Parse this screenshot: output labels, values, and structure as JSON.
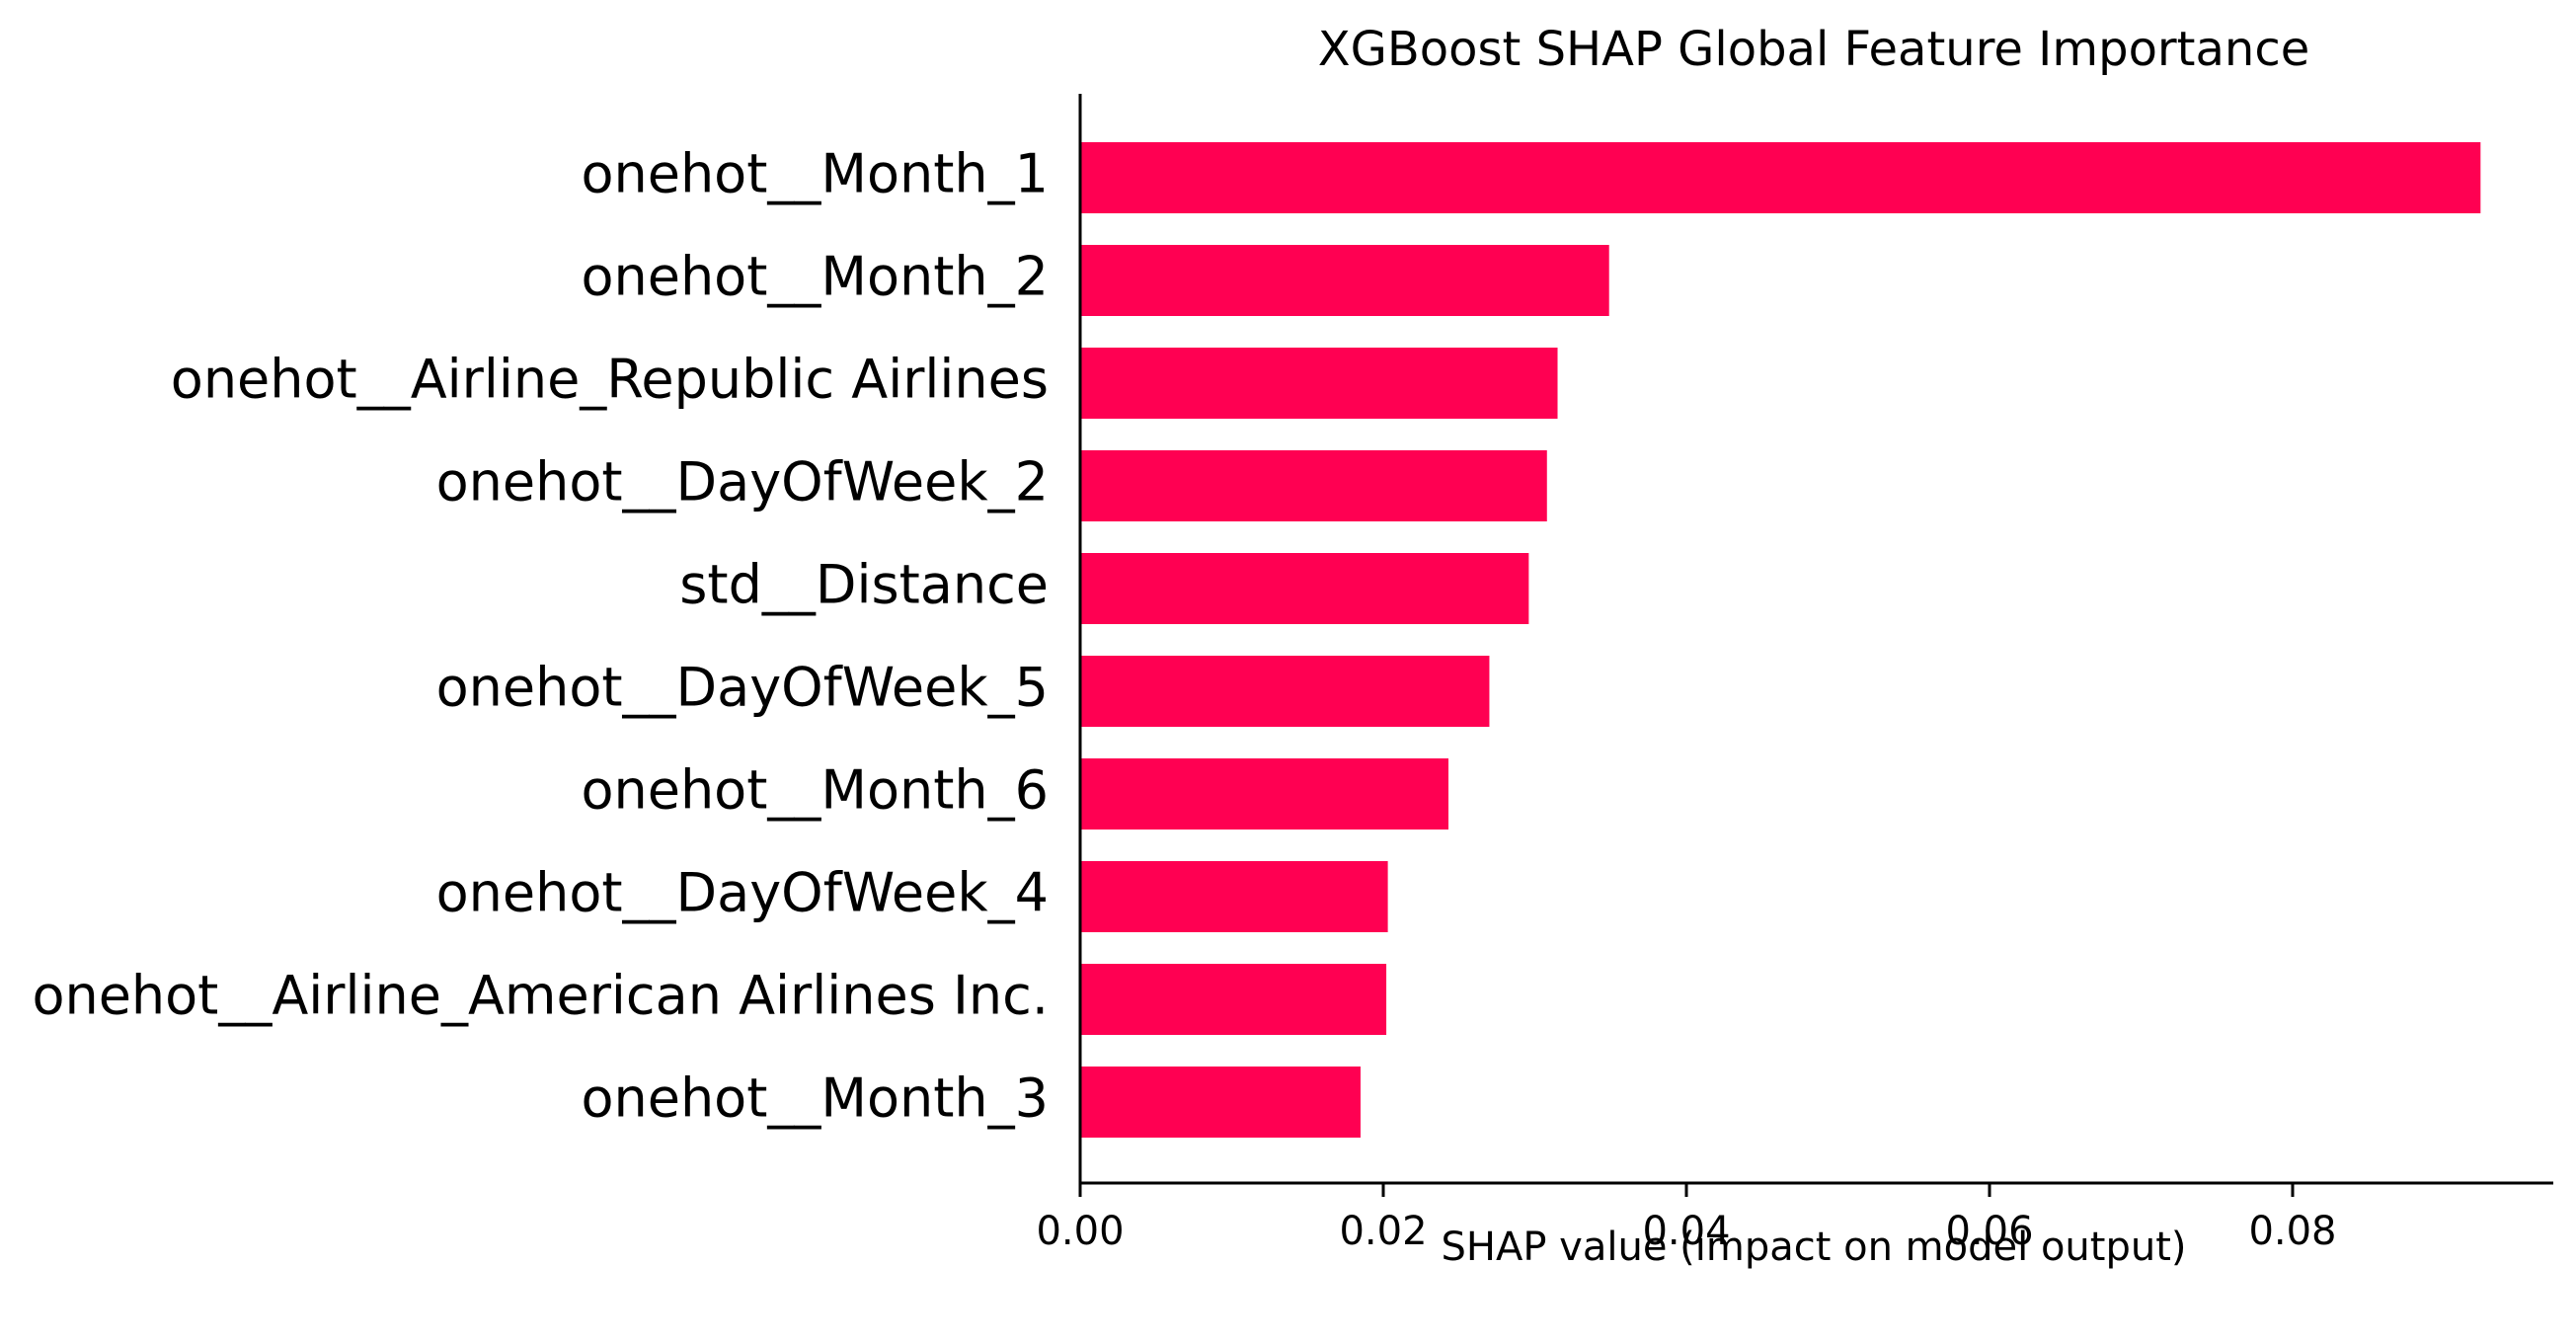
{
  "chart_data": {
    "type": "bar",
    "orientation": "horizontal",
    "title": "XGBoost SHAP Global Feature Importance",
    "xlabel": "SHAP value (impact on model output)",
    "ylabel": "",
    "categories": [
      "onehot__Month_1",
      "onehot__Month_2",
      "onehot__Airline_Republic Airlines",
      "onehot__DayOfWeek_2",
      "std__Distance",
      "onehot__DayOfWeek_5",
      "onehot__Month_6",
      "onehot__DayOfWeek_4",
      "onehot__Airline_American Airlines Inc.",
      "onehot__Month_3"
    ],
    "values": [
      0.0924,
      0.0349,
      0.0315,
      0.0308,
      0.0296,
      0.027,
      0.0243,
      0.0203,
      0.0202,
      0.0185
    ],
    "xlim": [
      0,
      0.0972
    ],
    "xticks": [
      0.0,
      0.02,
      0.04,
      0.06,
      0.08
    ],
    "xtick_labels": [
      "0.00",
      "0.02",
      "0.04",
      "0.06",
      "0.08"
    ],
    "bar_color": "#ff0052",
    "grid": false,
    "legend": "none"
  }
}
